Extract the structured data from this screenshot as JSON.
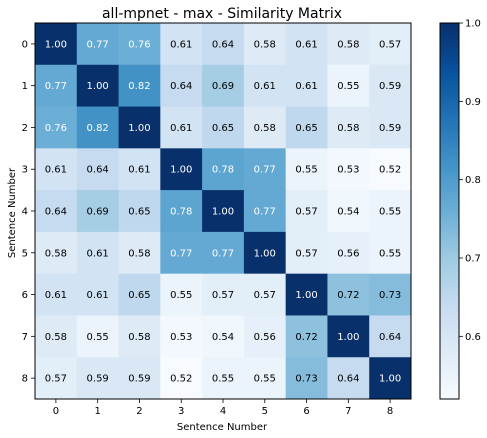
{
  "chart_data": {
    "type": "heatmap",
    "title": "all-mpnet - max - Similarity Matrix",
    "xlabel": "Sentence Number",
    "ylabel": "Sentence Number",
    "x_categories": [
      "0",
      "1",
      "2",
      "3",
      "4",
      "5",
      "6",
      "7",
      "8"
    ],
    "y_categories": [
      "0",
      "1",
      "2",
      "3",
      "4",
      "5",
      "6",
      "7",
      "8"
    ],
    "values": [
      [
        1.0,
        0.77,
        0.76,
        0.61,
        0.64,
        0.58,
        0.61,
        0.58,
        0.57
      ],
      [
        0.77,
        1.0,
        0.82,
        0.64,
        0.69,
        0.61,
        0.61,
        0.55,
        0.59
      ],
      [
        0.76,
        0.82,
        1.0,
        0.61,
        0.65,
        0.58,
        0.65,
        0.58,
        0.59
      ],
      [
        0.61,
        0.64,
        0.61,
        1.0,
        0.78,
        0.77,
        0.55,
        0.53,
        0.52
      ],
      [
        0.64,
        0.69,
        0.65,
        0.78,
        1.0,
        0.77,
        0.57,
        0.54,
        0.55
      ],
      [
        0.58,
        0.61,
        0.58,
        0.77,
        0.77,
        1.0,
        0.57,
        0.56,
        0.55
      ],
      [
        0.61,
        0.61,
        0.65,
        0.55,
        0.57,
        0.57,
        1.0,
        0.72,
        0.73
      ],
      [
        0.58,
        0.55,
        0.58,
        0.53,
        0.54,
        0.56,
        0.72,
        1.0,
        0.64
      ],
      [
        0.57,
        0.59,
        0.59,
        0.52,
        0.55,
        0.55,
        0.73,
        0.64,
        1.0
      ]
    ],
    "value_labels": [
      [
        "1.00",
        "0.77",
        "0.76",
        "0.61",
        "0.64",
        "0.58",
        "0.61",
        "0.58",
        "0.57"
      ],
      [
        "0.77",
        "1.00",
        "0.82",
        "0.64",
        "0.69",
        "0.61",
        "0.61",
        "0.55",
        "0.59"
      ],
      [
        "0.76",
        "0.82",
        "1.00",
        "0.61",
        "0.65",
        "0.58",
        "0.65",
        "0.58",
        "0.59"
      ],
      [
        "0.61",
        "0.64",
        "0.61",
        "1.00",
        "0.78",
        "0.77",
        "0.55",
        "0.53",
        "0.52"
      ],
      [
        "0.64",
        "0.69",
        "0.65",
        "0.78",
        "1.00",
        "0.77",
        "0.57",
        "0.54",
        "0.55"
      ],
      [
        "0.58",
        "0.61",
        "0.58",
        "0.77",
        "0.77",
        "1.00",
        "0.57",
        "0.56",
        "0.55"
      ],
      [
        "0.61",
        "0.61",
        "0.65",
        "0.55",
        "0.57",
        "0.57",
        "1.00",
        "0.72",
        "0.73"
      ],
      [
        "0.58",
        "0.55",
        "0.58",
        "0.53",
        "0.54",
        "0.56",
        "0.72",
        "1.00",
        "0.64"
      ],
      [
        "0.57",
        "0.59",
        "0.59",
        "0.52",
        "0.55",
        "0.55",
        "0.73",
        "0.64",
        "1.00"
      ]
    ],
    "colormap": "Blues",
    "colormap_stops": [
      "#f7fbff",
      "#deebf7",
      "#c6dbef",
      "#9ecae1",
      "#6baed6",
      "#4292c6",
      "#2171b5",
      "#08519c",
      "#08306b"
    ],
    "vmin": 0.52,
    "vmax": 1.0,
    "colorbar": {
      "ticks": [
        0.6,
        0.7,
        0.8,
        0.9,
        1.0
      ],
      "tick_labels": [
        "0.6",
        "0.7",
        "0.8",
        "0.9",
        "1.0"
      ]
    },
    "text_color_dark": "#000000",
    "text_color_light": "#ffffff",
    "text_threshold": 0.76
  }
}
